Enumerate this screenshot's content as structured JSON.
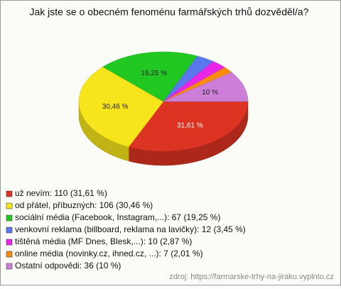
{
  "chart_data": {
    "type": "pie",
    "title": "Jak jste se o obecném fenoménu farmářských trhů dozvěděl/a?",
    "categories": [
      "už nevím",
      "od přátel, příbuzných",
      "sociální média (Facebook, Instagram,...)",
      "venkovní reklama (billboard, reklama na lavičky)",
      "tištěná média (MF Dnes, Blesk,...)",
      "online média (novinky.cz, ihned.cz, ...)",
      "Ostatní odpovědi"
    ],
    "values": [
      31.61,
      30.46,
      19.25,
      3.45,
      2.87,
      2.01,
      10
    ],
    "value_labels": [
      "31,61 %",
      "30,46 %",
      "19,25 %",
      null,
      null,
      null,
      "10 %"
    ],
    "legend_labels": [
      "už nevím: 110 (31,61 %)",
      "od přátel, příbuzných: 106 (30,46 %)",
      "sociální média (Facebook, Instagram,...): 67 (19,25 %)",
      "venkovní reklama (billboard, reklama na lavičky): 12 (3,45 %)",
      "tištěná média (MF Dnes, Blesk,...): 10 (2,87 %)",
      "online média (novinky.cz, ihned.cz, ...): 7 (2,01 %)",
      "Ostatní odpovědi: 36 (10 %)"
    ],
    "colors": [
      "#dd3322",
      "#f7e51c",
      "#22c822",
      "#5a78ee",
      "#e826e8",
      "#f88a10",
      "#cc7ed8"
    ],
    "source": "zdroj: https://farmarske-trhy-na-jiraku.vyplnto.cz"
  }
}
